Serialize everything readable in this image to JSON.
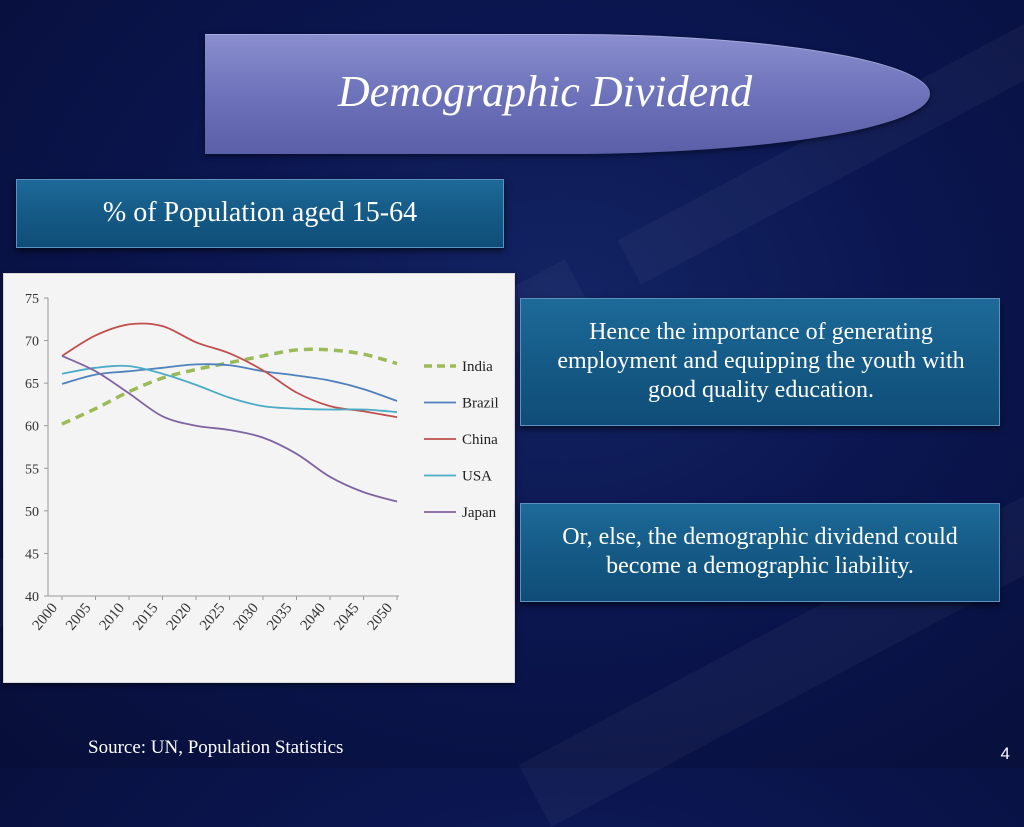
{
  "slide": {
    "title": "Demographic Dividend",
    "subtitle": "% of  Population aged 15-64",
    "text_box_1": "Hence the importance of  generating employment and equipping the youth with good quality education.",
    "text_box_2": "Or, else, the demographic dividend could become a demographic liability.",
    "source": "Source: UN, Population Statistics",
    "page_number": "4"
  },
  "chart_data": {
    "type": "line",
    "title": "% of Population aged 15-64",
    "xlabel": "",
    "ylabel": "",
    "x": [
      "2000",
      "2005",
      "2010",
      "2015",
      "2020",
      "2025",
      "2030",
      "2035",
      "2040",
      "2045",
      "2050"
    ],
    "ylim": [
      40,
      75
    ],
    "yticks": [
      40,
      45,
      50,
      55,
      60,
      65,
      70,
      75
    ],
    "legend_position": "right",
    "series": [
      {
        "name": "India",
        "color": "#9bbb59",
        "dashed": true,
        "values": [
          60.2,
          62.0,
          64.0,
          65.6,
          66.6,
          67.4,
          68.2,
          68.9,
          68.9,
          68.4,
          67.3
        ]
      },
      {
        "name": "Brazil",
        "color": "#4f81bd",
        "dashed": false,
        "values": [
          64.9,
          66.0,
          66.4,
          66.8,
          67.2,
          67.1,
          66.4,
          65.9,
          65.3,
          64.3,
          62.9
        ]
      },
      {
        "name": "China",
        "color": "#c0504d",
        "dashed": false,
        "values": [
          68.2,
          70.6,
          71.9,
          71.7,
          69.8,
          68.5,
          66.5,
          63.9,
          62.3,
          61.7,
          61.0
        ]
      },
      {
        "name": "USA",
        "color": "#4bacc6",
        "dashed": false,
        "values": [
          66.1,
          66.8,
          67.0,
          66.1,
          64.8,
          63.3,
          62.3,
          62.0,
          61.9,
          61.9,
          61.6
        ]
      },
      {
        "name": "Japan",
        "color": "#8064a2",
        "dashed": false,
        "values": [
          68.2,
          66.4,
          63.8,
          61.1,
          60.0,
          59.5,
          58.6,
          56.7,
          54.0,
          52.2,
          51.1
        ]
      }
    ]
  },
  "colors": {
    "background": "#0b1650",
    "title_pill": "#7479c0",
    "text_box": "#155a86"
  }
}
